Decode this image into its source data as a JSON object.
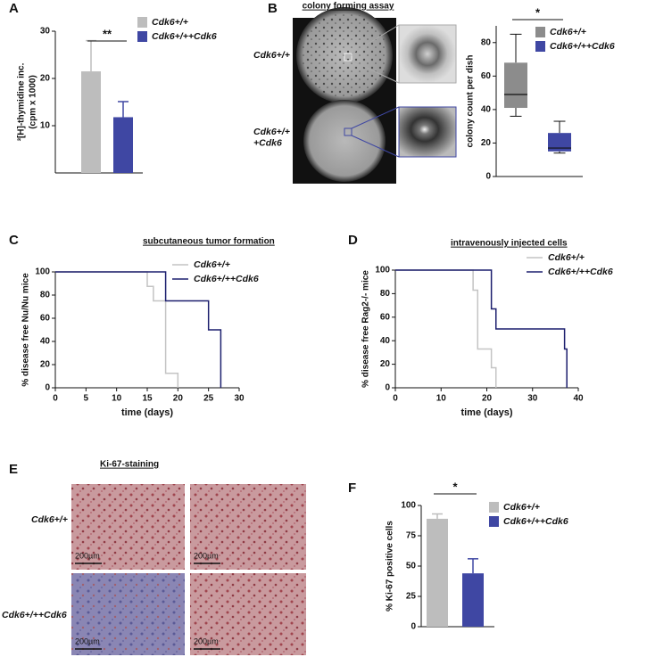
{
  "chart_data": [
    {
      "type": "bar",
      "panel": "A",
      "ylabel": [
        "³[H]-thymidine  inc.",
        "(cpm  x 1000)"
      ],
      "ylim": [
        0,
        30
      ],
      "yticks": [
        10,
        20,
        30
      ],
      "series": [
        {
          "name": "Cdk6+/+",
          "color": "#bdbdbd",
          "values": [
            21.5
          ],
          "errors": [
            6.5
          ]
        },
        {
          "name": "Cdk6+/++Cdk6",
          "color": "#3f47a3",
          "values": [
            11.8
          ],
          "errors": [
            3.3
          ]
        }
      ],
      "annotation": "**"
    },
    {
      "type": "box",
      "panel": "B",
      "ylabel": "colony count per dish",
      "ylim": [
        0,
        90
      ],
      "yticks": [
        0,
        20,
        40,
        60,
        80
      ],
      "series": [
        {
          "name": "Cdk6+/+",
          "color": "#8c8c8c",
          "min": 36,
          "q1": 41,
          "median": 49,
          "q3": 68,
          "max": 85
        },
        {
          "name": "Cdk6+/++Cdk6",
          "color": "#3f47a3",
          "min": 14,
          "q1": 15,
          "median": 17,
          "q3": 26,
          "max": 33
        }
      ],
      "annotation": "*"
    },
    {
      "type": "step",
      "panel": "C",
      "title": "subcutaneous tumor formation",
      "xlabel": "time (days)",
      "ylabel": "% disease free Nu/Nu mice",
      "xlim": [
        0,
        30
      ],
      "xticks": [
        0,
        5,
        10,
        15,
        20,
        25,
        30
      ],
      "ylim": [
        0,
        100
      ],
      "yticks": [
        0,
        20,
        40,
        60,
        80,
        100
      ],
      "series": [
        {
          "name": "Cdk6+/+",
          "color": "#c4c4c4",
          "x": [
            0,
            15,
            16,
            18,
            20
          ],
          "values": [
            100,
            87.5,
            75,
            12.5,
            0
          ]
        },
        {
          "name": "Cdk6+/++Cdk6",
          "color": "#1c1f6e",
          "x": [
            0,
            18,
            25,
            27
          ],
          "values": [
            100,
            75,
            50,
            0
          ]
        }
      ]
    },
    {
      "type": "step",
      "panel": "D",
      "title": "intravenously injected cells",
      "xlabel": "time (days)",
      "ylabel": "% disease free Rag2-/- mice",
      "xlim": [
        0,
        40
      ],
      "xticks": [
        0,
        10,
        20,
        30,
        40
      ],
      "ylim": [
        0,
        100
      ],
      "yticks": [
        0,
        20,
        40,
        60,
        80,
        100
      ],
      "series": [
        {
          "name": "Cdk6+/+",
          "color": "#c4c4c4",
          "x": [
            0,
            17,
            18,
            21,
            22
          ],
          "values": [
            100,
            83,
            33,
            17,
            0
          ]
        },
        {
          "name": "Cdk6+/++Cdk6",
          "color": "#1c1f6e",
          "x": [
            0,
            21,
            22,
            37,
            37.5
          ],
          "values": [
            100,
            67,
            50,
            33,
            0
          ]
        }
      ]
    },
    {
      "type": "bar",
      "panel": "F",
      "ylabel": "% Ki-67 positive cells",
      "ylim": [
        0,
        100
      ],
      "yticks": [
        0,
        25,
        50,
        75,
        100
      ],
      "series": [
        {
          "name": "Cdk6+/+",
          "color": "#bdbdbd",
          "values": [
            89
          ],
          "errors": [
            4
          ]
        },
        {
          "name": "Cdk6+/++Cdk6",
          "color": "#3f47a3",
          "values": [
            44
          ],
          "errors": [
            12
          ]
        }
      ],
      "annotation": "*"
    }
  ],
  "figure": {
    "B": {
      "title": "colony forming assay",
      "rows": [
        "Cdk6+/+",
        "Cdk6+/+\n+Cdk6"
      ]
    },
    "E": {
      "panel": "E",
      "title": "Ki-67-staining",
      "rows": [
        "Cdk6+/+",
        "Cdk6+/++Cdk6"
      ],
      "scale_bars": [
        "200µm",
        "200µm",
        "200µm",
        "200µm"
      ]
    }
  }
}
